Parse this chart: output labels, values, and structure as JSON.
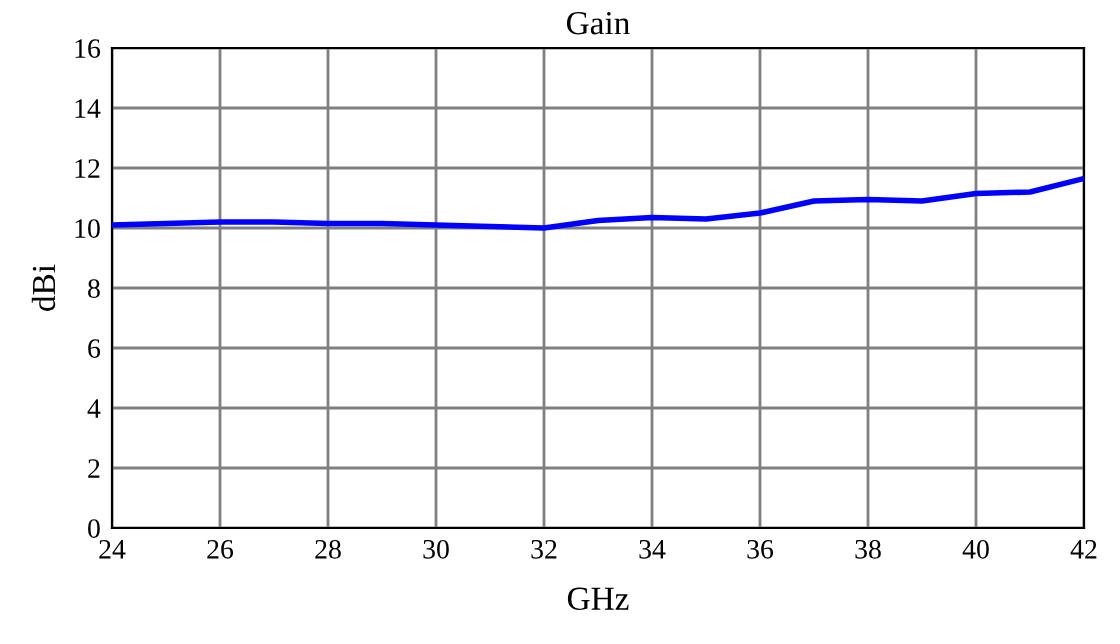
{
  "chart_data": {
    "type": "line",
    "title": "Gain",
    "xlabel": "GHz",
    "ylabel": "dBi",
    "x": [
      24,
      25,
      26,
      27,
      28,
      29,
      30,
      31,
      32,
      33,
      34,
      35,
      36,
      37,
      38,
      39,
      40,
      41,
      42
    ],
    "series": [
      {
        "color": "#0000ff",
        "values": [
          10.1,
          10.15,
          10.2,
          10.2,
          10.15,
          10.15,
          10.1,
          10.05,
          10.0,
          10.25,
          10.35,
          10.3,
          10.5,
          10.9,
          10.95,
          10.9,
          11.15,
          11.2,
          11.65
        ]
      }
    ],
    "xlim": [
      24,
      42
    ],
    "xticks": [
      24,
      26,
      28,
      30,
      32,
      34,
      36,
      38,
      40,
      42
    ],
    "ylim": [
      0,
      16
    ],
    "yticks": [
      0,
      2,
      4,
      6,
      8,
      10,
      12,
      14,
      16
    ],
    "grid": true,
    "marker": "none",
    "line_style": "solid"
  }
}
